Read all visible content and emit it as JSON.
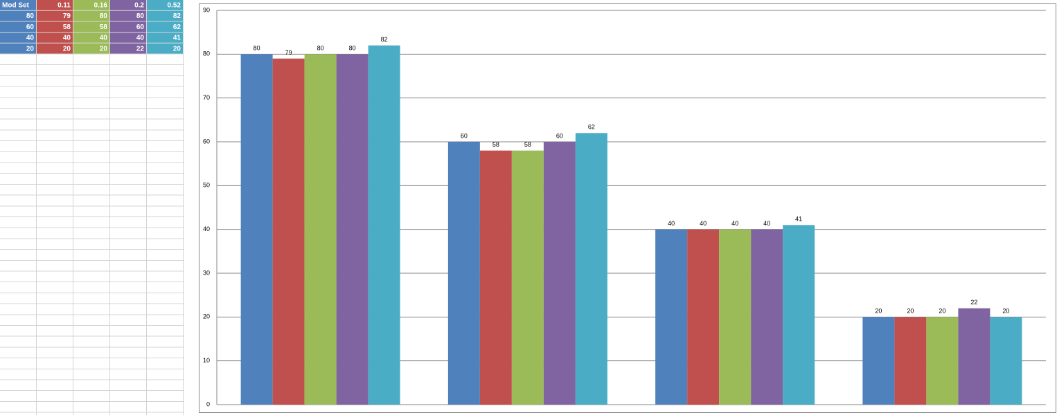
{
  "chart_data": {
    "type": "bar",
    "categories": [
      null,
      null,
      null,
      null
    ],
    "series": [
      {
        "name": "Mod Set",
        "color": "#4f81bd",
        "values": [
          80,
          60,
          40,
          20
        ]
      },
      {
        "name": "0.11",
        "color": "#c0504d",
        "values": [
          79,
          58,
          40,
          20
        ]
      },
      {
        "name": "0.16",
        "color": "#9bbb59",
        "values": [
          80,
          58,
          40,
          20
        ]
      },
      {
        "name": "0.2",
        "color": "#8064a2",
        "values": [
          80,
          60,
          40,
          22
        ]
      },
      {
        "name": "0.52",
        "color": "#4bacc6",
        "values": [
          82,
          62,
          41,
          20
        ]
      }
    ],
    "ylim": [
      0,
      90
    ],
    "yticks": [
      0,
      10,
      20,
      30,
      40,
      50,
      60,
      70,
      80,
      90
    ],
    "grid": true
  }
}
